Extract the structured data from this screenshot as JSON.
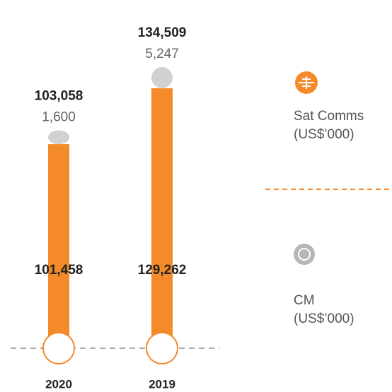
{
  "chart_data": {
    "type": "stacked-bar",
    "categories": [
      "2020",
      "2019"
    ],
    "series": [
      {
        "name": "Sat Comms",
        "unit": "(US$’000)",
        "color": "#f58a2a",
        "values": [
          101458,
          129262
        ],
        "value_labels": [
          "101,458",
          "129,262"
        ]
      },
      {
        "name": "CM",
        "unit": "(US$’000)",
        "color": "#d0d1d3",
        "values": [
          1600,
          5247
        ],
        "value_labels": [
          "1,600",
          "5,247"
        ]
      }
    ],
    "totals": [
      103058,
      134509
    ],
    "total_labels": [
      "103,058",
      "134,509"
    ]
  }
}
